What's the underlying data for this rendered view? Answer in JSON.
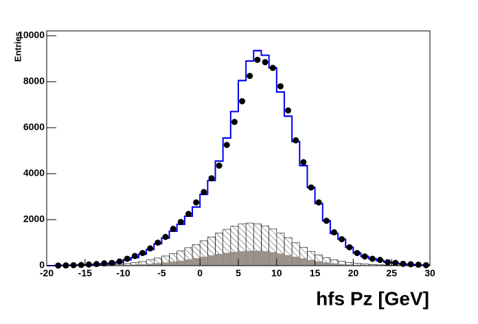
{
  "chart_data": {
    "type": "histogram",
    "xlabel": "hfs Pz [GeV]",
    "ylabel": "Entries",
    "bins": [
      -20,
      -19,
      -18,
      -17,
      -16,
      -15,
      -14,
      -13,
      -12,
      -11,
      -10,
      -9,
      -8,
      -7,
      -6,
      -5,
      -4,
      -3,
      -2,
      -1,
      0,
      1,
      2,
      3,
      4,
      5,
      6,
      7,
      8,
      9,
      10,
      11,
      12,
      13,
      14,
      15,
      16,
      17,
      18,
      19,
      20,
      21,
      22,
      23,
      24,
      25,
      26,
      27,
      28,
      29,
      30
    ],
    "series": [
      {
        "style": "hatch",
        "color": "#000000",
        "values": [
          0,
          0,
          5,
          5,
          10,
          15,
          20,
          30,
          40,
          60,
          90,
          130,
          180,
          250,
          330,
          420,
          520,
          640,
          780,
          920,
          1080,
          1250,
          1420,
          1580,
          1720,
          1820,
          1850,
          1820,
          1730,
          1600,
          1420,
          1220,
          1000,
          800,
          620,
          470,
          350,
          260,
          190,
          140,
          100,
          70,
          50,
          35,
          25,
          15,
          10,
          5,
          5,
          0
        ]
      },
      {
        "style": "fill",
        "color": "#9c928a",
        "values": [
          0,
          0,
          0,
          0,
          5,
          5,
          10,
          10,
          15,
          20,
          30,
          45,
          60,
          85,
          110,
          140,
          180,
          220,
          270,
          330,
          390,
          450,
          510,
          560,
          600,
          630,
          650,
          650,
          630,
          590,
          530,
          460,
          390,
          320,
          250,
          190,
          140,
          100,
          70,
          50,
          35,
          25,
          15,
          10,
          5,
          5,
          0,
          0,
          0,
          0
        ]
      },
      {
        "style": "step",
        "color": "#0000ee",
        "values": [
          0,
          5,
          10,
          20,
          30,
          45,
          60,
          80,
          100,
          150,
          250,
          350,
          500,
          700,
          950,
          1200,
          1500,
          1800,
          2150,
          2550,
          3100,
          3700,
          4550,
          5550,
          6700,
          8050,
          8900,
          9350,
          9150,
          8600,
          7550,
          6500,
          5400,
          4350,
          3400,
          2700,
          1950,
          1400,
          1150,
          800,
          550,
          400,
          300,
          220,
          150,
          100,
          70,
          50,
          30,
          20
        ]
      },
      {
        "style": "points",
        "color": "#000000",
        "values": [
          null,
          5,
          10,
          20,
          30,
          50,
          70,
          100,
          120,
          180,
          300,
          420,
          550,
          750,
          1000,
          1250,
          1600,
          1900,
          2250,
          2750,
          3200,
          3800,
          4350,
          5250,
          6250,
          7150,
          8250,
          8950,
          8850,
          8600,
          7800,
          6750,
          5450,
          4500,
          3400,
          2750,
          1950,
          1450,
          1150,
          800,
          550,
          400,
          300,
          250,
          150,
          120,
          80,
          60,
          40,
          20
        ]
      }
    ],
    "xlim": [
      -20,
      30
    ],
    "ylim": [
      0,
      10000
    ],
    "xticks": [
      -20,
      -15,
      -10,
      -5,
      0,
      5,
      10,
      15,
      20,
      25,
      30
    ],
    "yticks": [
      0,
      2000,
      4000,
      6000,
      8000,
      10000
    ]
  }
}
